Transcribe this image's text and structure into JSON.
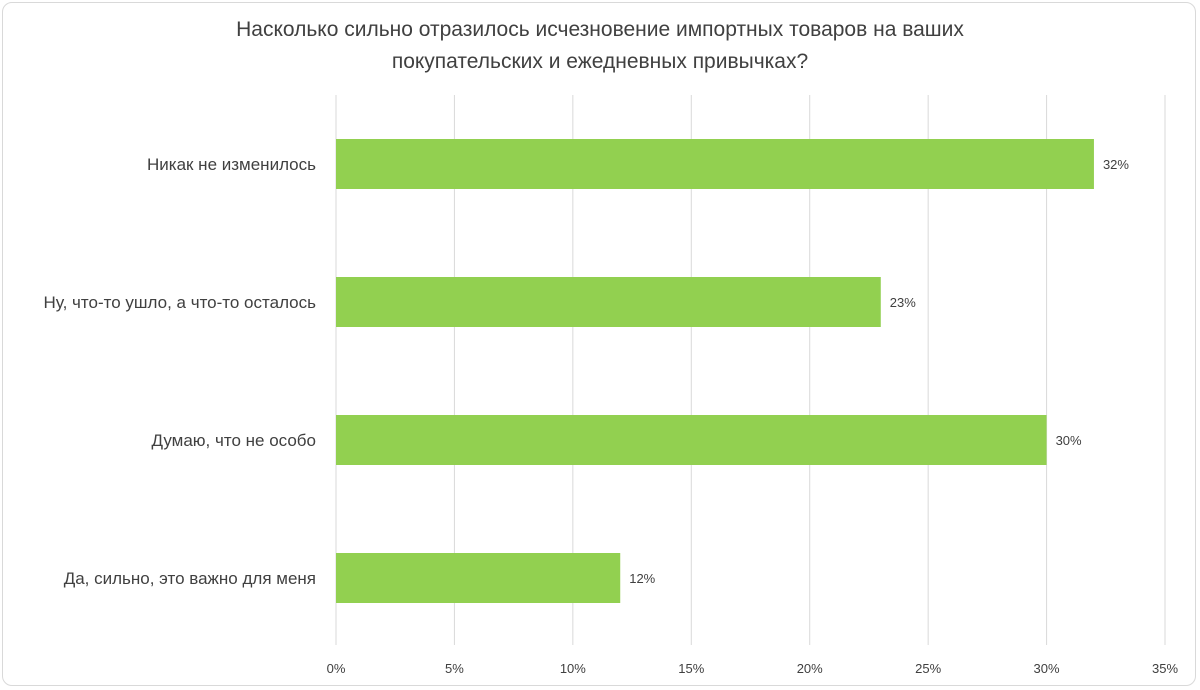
{
  "chart_data": {
    "type": "bar",
    "orientation": "horizontal",
    "title_lines": [
      "Насколько сильно отразилось исчезновение импортных товаров на ваших",
      "покупательских и ежедневных привычках?"
    ],
    "categories": [
      "Никак не изменилось",
      "Ну, что-то ушло, а что-то осталось",
      "Думаю, что не особо",
      "Да, сильно, это важно для меня"
    ],
    "values": [
      32,
      23,
      30,
      12
    ],
    "data_labels": [
      "32%",
      "23%",
      "30%",
      "12%"
    ],
    "xlim": [
      0,
      35
    ],
    "xticks": [
      0,
      5,
      10,
      15,
      20,
      25,
      30,
      35
    ],
    "xtick_labels": [
      "0%",
      "5%",
      "10%",
      "15%",
      "20%",
      "25%",
      "30%",
      "35%"
    ],
    "bar_color": "#92d050",
    "grid": true,
    "legend": "none"
  }
}
